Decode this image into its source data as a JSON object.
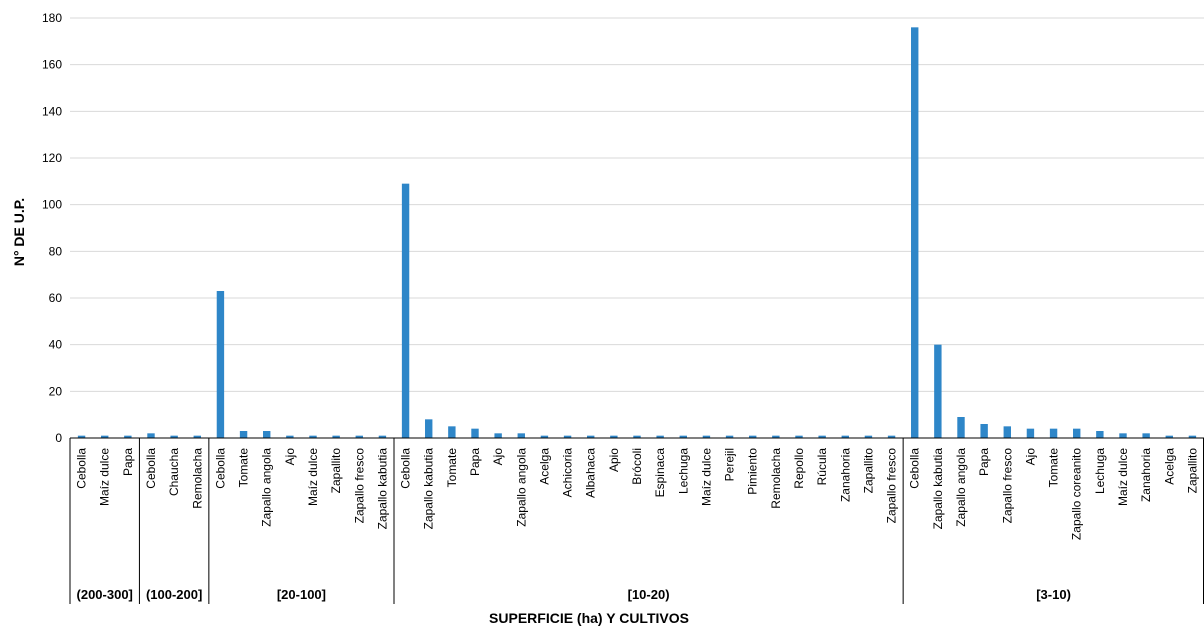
{
  "chart_data": {
    "type": "bar",
    "title": "",
    "xlabel": "SUPERFICIE (ha) Y CULTIVOS",
    "ylabel": "N° DE U.P.",
    "ylim": [
      0,
      180
    ],
    "yticks": [
      0,
      20,
      40,
      60,
      80,
      100,
      120,
      140,
      160,
      180
    ],
    "grid": true,
    "bar_color": "#2e86c8",
    "groups": [
      {
        "label": "(200-300]",
        "categories": [
          "Cebolla",
          "Maíz dulce",
          "Papa"
        ],
        "values": [
          1,
          1,
          1
        ]
      },
      {
        "label": "(100-200]",
        "categories": [
          "Cebolla",
          "Chaucha",
          "Remolacha"
        ],
        "values": [
          2,
          1,
          1
        ]
      },
      {
        "label": "[20-100]",
        "categories": [
          "Cebolla",
          "Tomate",
          "Zapallo angola",
          "Ajo",
          "Maíz dulce",
          "Zapallito",
          "Zapallo fresco",
          "Zapallo kabutia"
        ],
        "values": [
          63,
          3,
          3,
          1,
          1,
          1,
          1,
          1
        ]
      },
      {
        "label": "[10-20)",
        "categories": [
          "Cebolla",
          "Zapallo kabutia",
          "Tomate",
          "Papa",
          "Ajo",
          "Zapallo angola",
          "Acelga",
          "Achicoria",
          "Albahaca",
          "Apio",
          "Brócoli",
          "Espinaca",
          "Lechuga",
          "Maíz dulce",
          "Perejil",
          "Pimiento",
          "Remolacha",
          "Repollo",
          "Rúcula",
          "Zanahoria",
          "Zapallito",
          "Zapallo fresco"
        ],
        "values": [
          109,
          8,
          5,
          4,
          2,
          2,
          1,
          1,
          1,
          1,
          1,
          1,
          1,
          1,
          1,
          1,
          1,
          1,
          1,
          1,
          1,
          1
        ]
      },
      {
        "label": "[3-10)",
        "categories": [
          "Cebolla",
          "Zapallo kabutia",
          "Zapallo angola",
          "Papa",
          "Zapallo fresco",
          "Ajo",
          "Tomate",
          "Zapallo coreanito",
          "Lechuga",
          "Maíz dulce",
          "Zanahoria",
          "Acelga",
          "Zapallito"
        ],
        "values": [
          176,
          40,
          9,
          6,
          5,
          4,
          4,
          4,
          3,
          2,
          2,
          1,
          1
        ]
      }
    ]
  }
}
